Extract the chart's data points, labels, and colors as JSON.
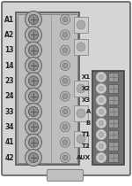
{
  "left_labels": [
    "A1",
    "A2",
    "13",
    "14",
    "23",
    "24",
    "33",
    "34",
    "41",
    "42"
  ],
  "right_labels": [
    "X1",
    "X2",
    "X3",
    "A",
    "B",
    "T1",
    "T2",
    "AUX"
  ],
  "body_facecolor": "#c8c8c8",
  "body_edgecolor": "#888888",
  "left_block_facecolor": "#b0b0b0",
  "left_block_edgecolor": "#555555",
  "right_block_facecolor": "#707070",
  "right_block_edgecolor": "#444444",
  "terminal_outer_face": "#c0c0c0",
  "terminal_inner_face": "#909090",
  "terminal_edge": "#666666",
  "mid_block_face": "#d0d0d0",
  "mid_block_edge": "#888888"
}
